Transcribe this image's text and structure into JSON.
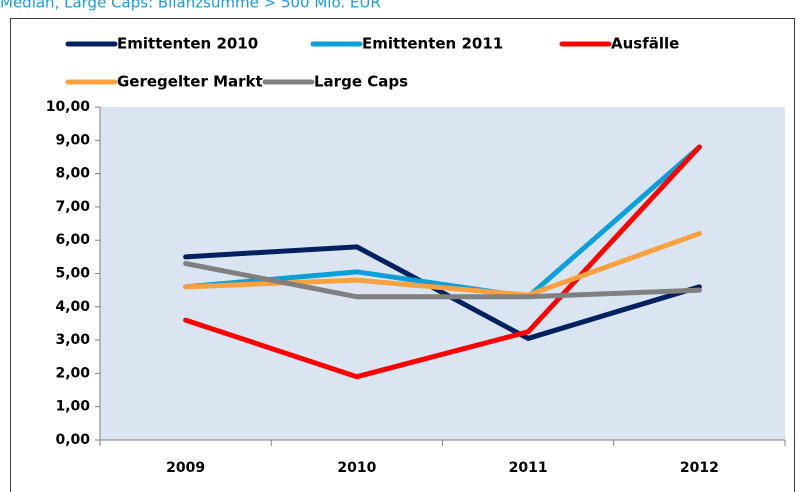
{
  "chart_data": {
    "type": "line",
    "title": "Median, Large Caps: Bilanzsumme > 500 Mio. EUR",
    "categories": [
      "2009",
      "2010",
      "2011",
      "2012"
    ],
    "series": [
      {
        "name": "Emittenten 2010",
        "color": "#002060",
        "values": [
          5.5,
          5.8,
          3.05,
          4.6
        ]
      },
      {
        "name": "Emittenten 2011",
        "color": "#0e9fd8",
        "values": [
          4.6,
          5.05,
          4.3,
          8.8
        ]
      },
      {
        "name": "Ausfälle",
        "color": "#ff0000",
        "values": [
          3.6,
          1.9,
          3.25,
          8.8
        ]
      },
      {
        "name": "Geregelter Markt",
        "color": "#f9a040",
        "values": [
          4.6,
          4.8,
          4.35,
          6.2
        ]
      },
      {
        "name": "Large Caps",
        "color": "#808080",
        "values": [
          5.3,
          4.3,
          4.3,
          4.5
        ]
      }
    ],
    "ylim": [
      0,
      10
    ],
    "yticks": [
      {
        "value": 0,
        "label": "0,00"
      },
      {
        "value": 1,
        "label": "1,00"
      },
      {
        "value": 2,
        "label": "2,00"
      },
      {
        "value": 3,
        "label": "3,00"
      },
      {
        "value": 4,
        "label": "4,00"
      },
      {
        "value": 5,
        "label": "5,00"
      },
      {
        "value": 6,
        "label": "6,00"
      },
      {
        "value": 7,
        "label": "7,00"
      },
      {
        "value": 8,
        "label": "8,00"
      },
      {
        "value": 9,
        "label": "9,00"
      },
      {
        "value": 10,
        "label": "10,00"
      }
    ],
    "grid": false,
    "legend": "top"
  }
}
